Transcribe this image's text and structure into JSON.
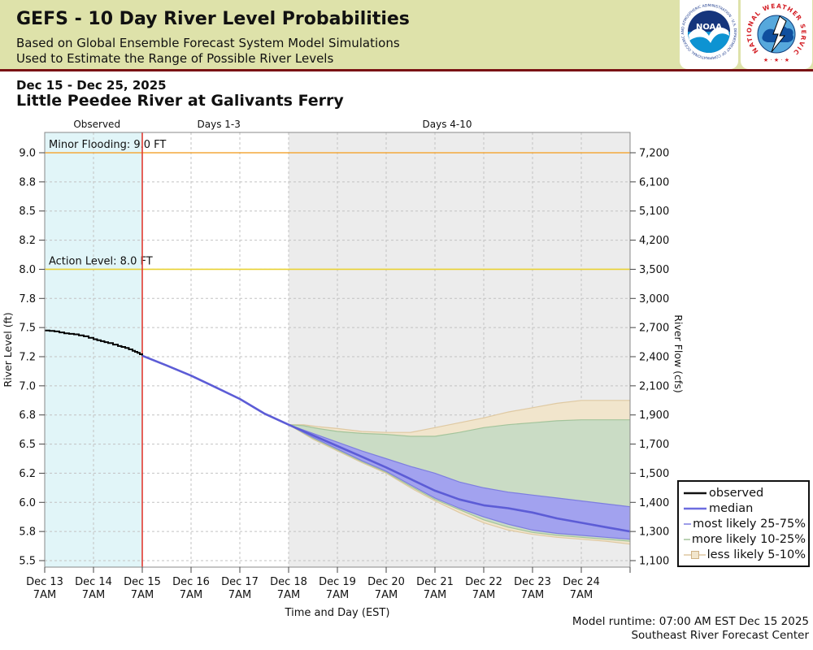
{
  "header": {
    "title": "GEFS - 10 Day River Level Probabilities",
    "subtitle1": "Based on Global Ensemble Forecast System Model Simulations",
    "subtitle2": "Used to Estimate the Range of Possible River Levels",
    "noaa_label": "NOAA",
    "noaa_ring_text": "NATIONAL OCEANIC AND ATMOSPHERIC ADMINISTRATION · U.S. DEPARTMENT OF COMMERCE",
    "nws_ring_text": "NATIONAL WEATHER SERVICE",
    "nws_stars": "★ · ★ · ★"
  },
  "page": {
    "date_range": "Dec 15 - Dec 25, 2025",
    "station_title": "Little Peedee River at Galivants Ferry",
    "footer_line1": "Model runtime: 07:00 AM EST Dec 15 2025",
    "footer_line2": "Southeast River Forecast Center"
  },
  "chart_data": {
    "type": "line",
    "title": "Little Peedee River at Galivants Ferry",
    "xlabel": "Time and Day (EST)",
    "ylabel_left": "River Level (ft)",
    "ylabel_right": "River Flow (cfs)",
    "stage_ticks": [
      9.0,
      8.8,
      8.5,
      8.2,
      8.0,
      7.8,
      7.5,
      7.2,
      7.0,
      6.8,
      6.5,
      6.2,
      6.0,
      5.8,
      5.5
    ],
    "stage_tick_labels": [
      "9.0",
      "8.8",
      "8.5",
      "8.2",
      "8.0",
      "7.8",
      "7.5",
      "7.2",
      "7.0",
      "6.8",
      "6.5",
      "6.2",
      "6.0",
      "5.8",
      "5.5"
    ],
    "flow_tick_labels": [
      "7,200",
      "6,100",
      "5,100",
      "4,200",
      "3,500",
      "3,000",
      "2,700",
      "2,400",
      "2,100",
      "1,900",
      "1,700",
      "1,500",
      "1,400",
      "1,300",
      "1,100"
    ],
    "x_ticks": [
      {
        "label": "Dec 13",
        "time": "7AM"
      },
      {
        "label": "Dec 14",
        "time": "7AM"
      },
      {
        "label": "Dec 15",
        "time": "7AM"
      },
      {
        "label": "Dec 16",
        "time": "7AM"
      },
      {
        "label": "Dec 17",
        "time": "7AM"
      },
      {
        "label": "Dec 18",
        "time": "7AM"
      },
      {
        "label": "Dec 19",
        "time": "7AM"
      },
      {
        "label": "Dec 20",
        "time": "7AM"
      },
      {
        "label": "Dec 21",
        "time": "7AM"
      },
      {
        "label": "Dec 22",
        "time": "7AM"
      },
      {
        "label": "Dec 23",
        "time": "7AM"
      },
      {
        "label": "Dec 24",
        "time": "7AM"
      }
    ],
    "regions": [
      {
        "name": "observed",
        "start_day": 0,
        "end_day": 2,
        "color": "#e1f5f8"
      },
      {
        "name": "days1-3",
        "start_day": 2,
        "end_day": 5,
        "color": "#ffffff"
      },
      {
        "name": "days4-10",
        "start_day": 5,
        "end_day": 12,
        "color": "#ececec"
      }
    ],
    "region_labels": [
      {
        "label": "Observed",
        "center_day": 1.07
      },
      {
        "label": "Days 1-3",
        "center_day": 3.57
      },
      {
        "label": "Days 4-10",
        "center_day": 8.25
      }
    ],
    "thresholds": [
      {
        "label": "Minor Flooding: 9.0 FT",
        "value": 9.0,
        "color": "#f4a93c"
      },
      {
        "label": "Action Level: 8.0 FT",
        "value": 8.0,
        "color": "#e9d234"
      }
    ],
    "forecast_divider": {
      "day": 2,
      "color": "#e23b32"
    },
    "series": {
      "observed": [
        [
          0,
          7.47
        ],
        [
          0.2,
          7.46
        ],
        [
          0.4,
          7.44
        ],
        [
          0.6,
          7.43
        ],
        [
          0.8,
          7.41
        ],
        [
          1.0,
          7.38
        ],
        [
          1.15,
          7.36
        ],
        [
          1.3,
          7.34
        ],
        [
          1.5,
          7.31
        ],
        [
          1.65,
          7.29
        ],
        [
          1.8,
          7.26
        ],
        [
          1.9,
          7.24
        ],
        [
          2.0,
          7.21
        ]
      ],
      "median": [
        [
          2,
          7.21
        ],
        [
          2.5,
          7.14
        ],
        [
          3,
          7.07
        ],
        [
          3.5,
          6.99
        ],
        [
          4,
          6.91
        ],
        [
          4.5,
          6.81
        ],
        [
          5,
          6.7
        ],
        [
          5.5,
          6.59
        ],
        [
          6,
          6.48
        ],
        [
          6.5,
          6.37
        ],
        [
          7,
          6.26
        ],
        [
          7.5,
          6.16
        ],
        [
          8,
          6.08
        ],
        [
          8.5,
          6.02
        ],
        [
          9,
          5.98
        ],
        [
          9.5,
          5.96
        ],
        [
          10,
          5.93
        ],
        [
          10.5,
          5.89
        ],
        [
          11,
          5.86
        ],
        [
          11.5,
          5.83
        ],
        [
          12,
          5.8
        ]
      ],
      "band_25_75": {
        "top": [
          [
            5,
            6.7
          ],
          [
            5.5,
            6.61
          ],
          [
            6,
            6.52
          ],
          [
            6.5,
            6.43
          ],
          [
            7,
            6.35
          ],
          [
            7.5,
            6.27
          ],
          [
            8,
            6.2
          ],
          [
            8.5,
            6.14
          ],
          [
            9,
            6.1
          ],
          [
            9.5,
            6.07
          ],
          [
            10,
            6.05
          ],
          [
            10.5,
            6.03
          ],
          [
            11,
            6.01
          ],
          [
            11.5,
            5.99
          ],
          [
            12,
            5.97
          ]
        ],
        "bottom": [
          [
            5,
            6.7
          ],
          [
            5.5,
            6.57
          ],
          [
            6,
            6.45
          ],
          [
            6.5,
            6.33
          ],
          [
            7,
            6.22
          ],
          [
            7.5,
            6.12
          ],
          [
            8,
            6.03
          ],
          [
            8.5,
            5.96
          ],
          [
            9,
            5.9
          ],
          [
            9.5,
            5.85
          ],
          [
            10,
            5.81
          ],
          [
            10.5,
            5.78
          ],
          [
            11,
            5.76
          ],
          [
            11.5,
            5.74
          ],
          [
            12,
            5.72
          ]
        ]
      },
      "band_10_25": {
        "top": [
          [
            5,
            6.7
          ],
          [
            5.3,
            6.69
          ],
          [
            5.6,
            6.66
          ],
          [
            6,
            6.63
          ],
          [
            6.5,
            6.61
          ],
          [
            7,
            6.6
          ],
          [
            7.5,
            6.58
          ],
          [
            8,
            6.58
          ],
          [
            8.5,
            6.62
          ],
          [
            9,
            6.67
          ],
          [
            9.5,
            6.7
          ],
          [
            10,
            6.72
          ],
          [
            10.5,
            6.74
          ],
          [
            11,
            6.75
          ],
          [
            11.5,
            6.75
          ],
          [
            12,
            6.75
          ]
        ],
        "bottom": [
          [
            5,
            6.7
          ],
          [
            5.5,
            6.56
          ],
          [
            6,
            6.44
          ],
          [
            6.5,
            6.32
          ],
          [
            7,
            6.21
          ],
          [
            7.5,
            6.11
          ],
          [
            8,
            6.02
          ],
          [
            8.5,
            5.95
          ],
          [
            9,
            5.88
          ],
          [
            9.5,
            5.83
          ],
          [
            10,
            5.79
          ],
          [
            10.5,
            5.76
          ],
          [
            11,
            5.74
          ],
          [
            11.5,
            5.72
          ],
          [
            12,
            5.7
          ]
        ]
      },
      "band_5_10": {
        "top": [
          [
            5,
            6.7
          ],
          [
            5.3,
            6.7
          ],
          [
            5.6,
            6.68
          ],
          [
            6,
            6.66
          ],
          [
            6.5,
            6.63
          ],
          [
            7,
            6.62
          ],
          [
            7.5,
            6.62
          ],
          [
            8,
            6.67
          ],
          [
            8.5,
            6.72
          ],
          [
            9,
            6.77
          ],
          [
            9.5,
            6.82
          ],
          [
            10,
            6.85
          ],
          [
            10.5,
            6.88
          ],
          [
            11,
            6.9
          ],
          [
            11.5,
            6.9
          ],
          [
            12,
            6.9
          ]
        ],
        "bottom": [
          [
            5,
            6.7
          ],
          [
            5.5,
            6.55
          ],
          [
            6,
            6.43
          ],
          [
            6.5,
            6.31
          ],
          [
            7,
            6.2
          ],
          [
            7.5,
            6.1
          ],
          [
            8,
            6.01
          ],
          [
            8.5,
            5.93
          ],
          [
            9,
            5.86
          ],
          [
            9.5,
            5.81
          ],
          [
            10,
            5.77
          ],
          [
            10.5,
            5.74
          ],
          [
            11,
            5.72
          ],
          [
            11.5,
            5.7
          ],
          [
            12,
            5.67
          ]
        ]
      }
    },
    "series_colors": {
      "observed": "#000000",
      "median": "#5c5cd6",
      "band_25_75_fill": "#a2a2ef",
      "band_25_75_edge": "#7d7de0",
      "band_10_25_fill": "#cadcc5",
      "band_10_25_edge": "#a3c49b",
      "band_5_10_fill": "#f1e5cc",
      "band_5_10_edge": "#dfc9a2"
    },
    "legend": [
      {
        "label": "observed",
        "line": "#111111",
        "marker": null
      },
      {
        "label": "median",
        "line": "#6c6cdf",
        "marker": null
      },
      {
        "label": "most likely 25-75%",
        "line": "#7d7de0",
        "marker": {
          "fill": "#a2a2ef",
          "edge": "#5c5ccc"
        }
      },
      {
        "label": "more likely 10-25%",
        "line": "#a3c49b",
        "marker": {
          "fill": "#cadcc5",
          "edge": "#8fb386"
        }
      },
      {
        "label": "less likely 5-10%",
        "line": "#dfc9a2",
        "marker": {
          "fill": "#f1e5cc",
          "edge": "#cfb184"
        }
      }
    ],
    "grid": {
      "color": "#c2c2c2",
      "dash": "3 3"
    },
    "legend_position": "lower right (outside plot)"
  }
}
